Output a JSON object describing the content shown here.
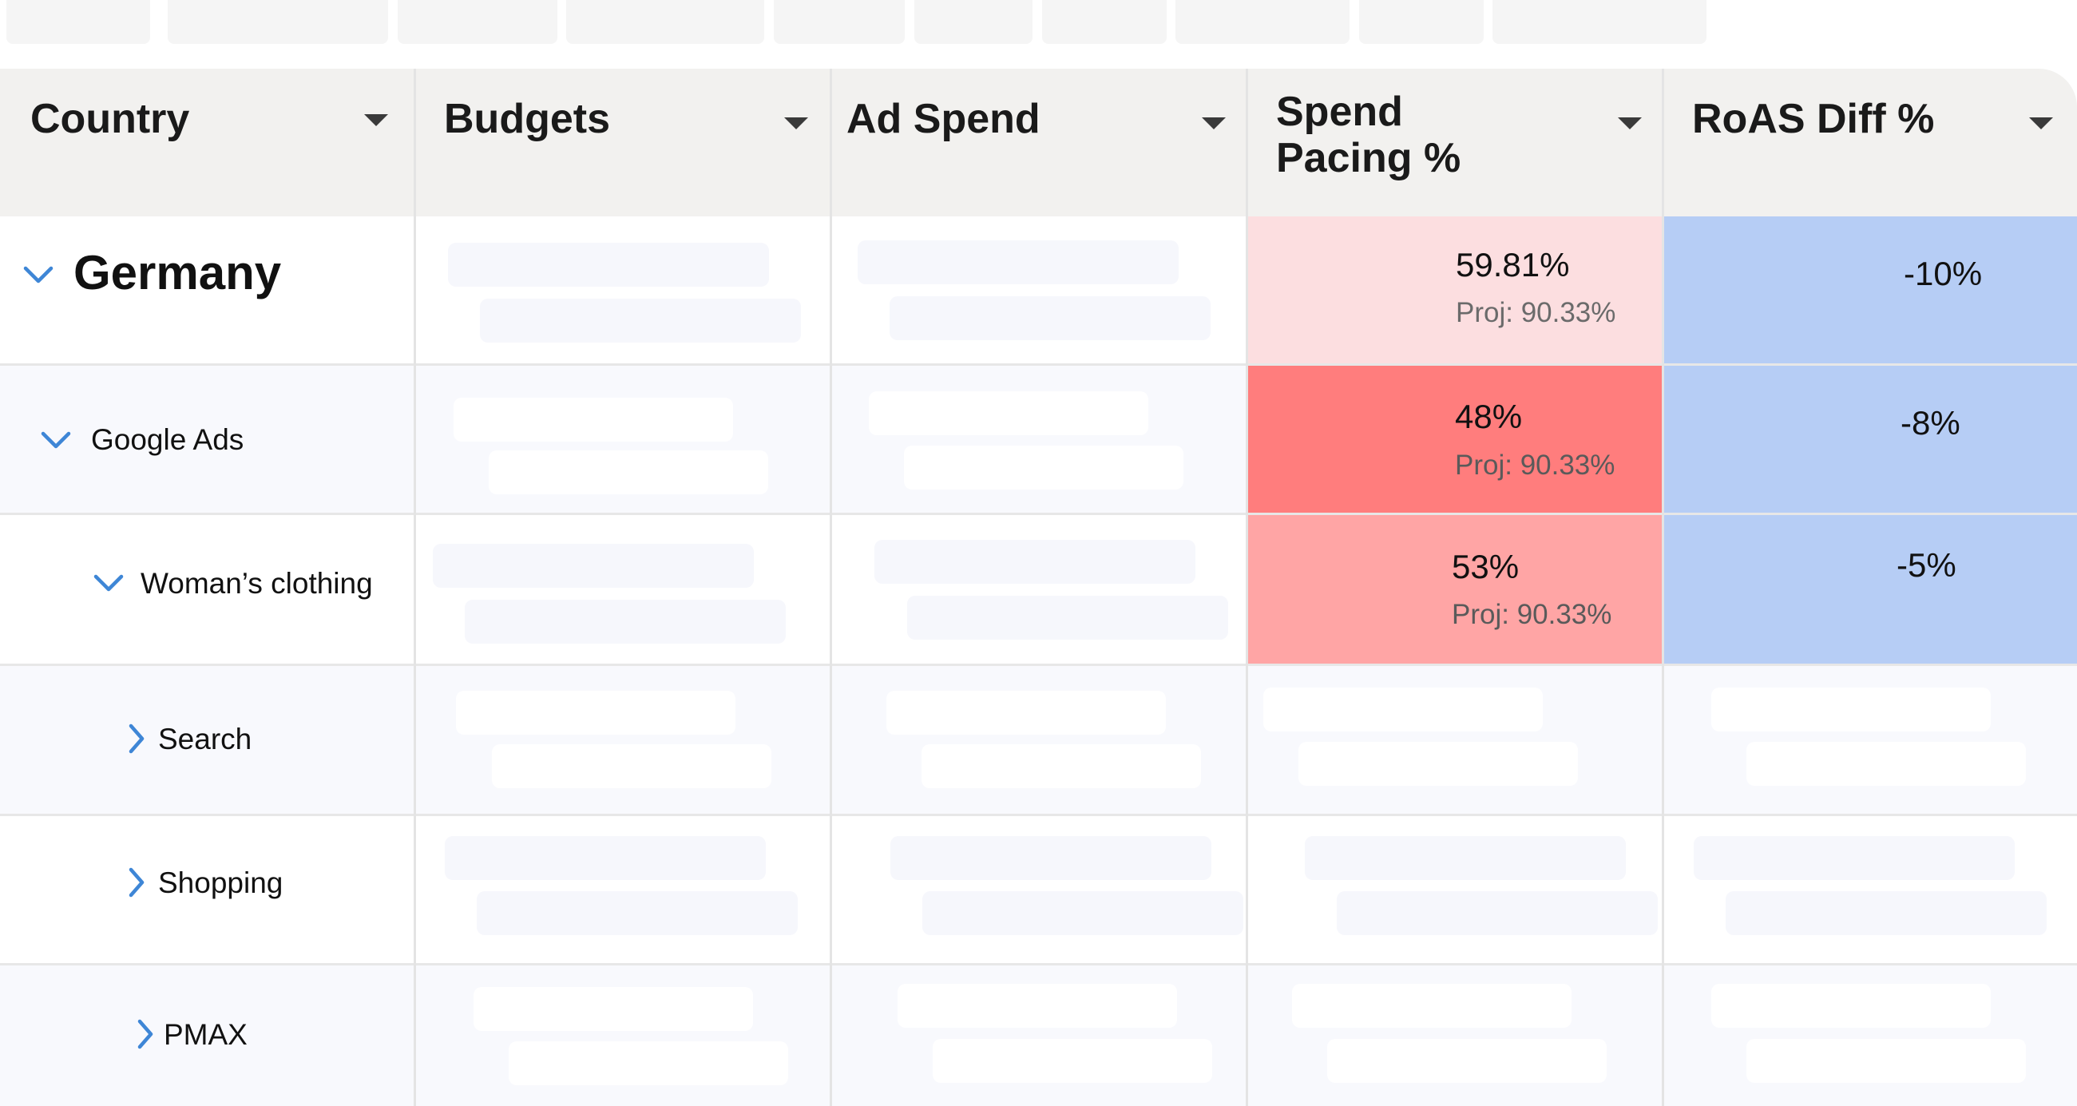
{
  "columns": [
    {
      "key": "country",
      "label": "Country"
    },
    {
      "key": "budgets",
      "label": "Budgets"
    },
    {
      "key": "ad_spend",
      "label": "Ad Spend"
    },
    {
      "key": "spend_pacing",
      "label": "Spend\nPacing %"
    },
    {
      "key": "roas_diff",
      "label": "RoAS Diff %"
    }
  ],
  "rows": [
    {
      "label": "Germany",
      "expanded": true,
      "level": 0,
      "spend_pacing": "59.81%",
      "projection": "Proj: 90.33%",
      "roas_diff": "-10%"
    },
    {
      "label": "Google Ads",
      "expanded": true,
      "level": 1,
      "spend_pacing": "48%",
      "projection": "Proj: 90.33%",
      "roas_diff": "-8%"
    },
    {
      "label": "Woman’s clothing",
      "expanded": true,
      "level": 2,
      "spend_pacing": "53%",
      "projection": "Proj: 90.33%",
      "roas_diff": "-5%"
    },
    {
      "label": "Search",
      "expanded": false,
      "level": 3
    },
    {
      "label": "Shopping",
      "expanded": false,
      "level": 3
    },
    {
      "label": "PMAX",
      "expanded": false,
      "level": 3
    }
  ],
  "colors": {
    "header_bg": "#f2f1ef",
    "alt_row_bg": "#f8f9fd",
    "pacing_light": "#fcdee0",
    "pacing_strong": "#ff7d7d",
    "pacing_medium": "#ffa5a5",
    "roas_blue": "#b6cdf5",
    "chevron_blue": "#3e86d6"
  }
}
